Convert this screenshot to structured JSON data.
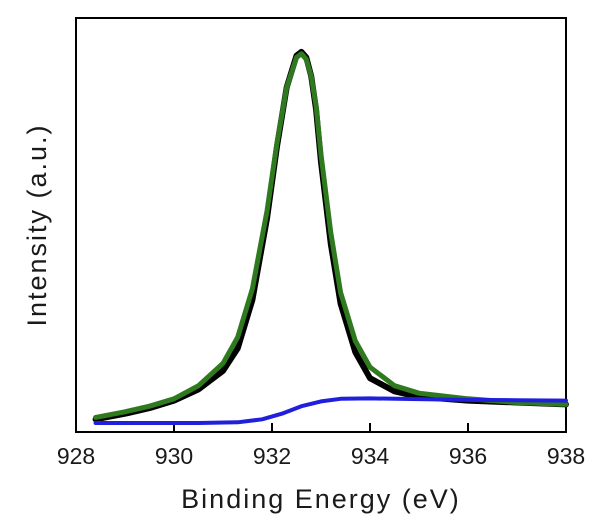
{
  "chart_data": {
    "type": "line",
    "title": "",
    "xlabel": "Binding Energy (eV)",
    "ylabel": "Intensity (a.u.)",
    "xlim": [
      928,
      938
    ],
    "ylim": [
      0,
      1
    ],
    "x_ticks": [
      "928",
      "930",
      "932",
      "934",
      "936",
      "938"
    ],
    "y_ticks_labeled": false,
    "grid": false,
    "legend": "none",
    "series": [
      {
        "color": "#000000",
        "x": [
          928.4,
          929.0,
          929.5,
          930.0,
          930.5,
          931.0,
          931.3,
          931.6,
          931.9,
          932.1,
          932.3,
          932.5,
          932.6,
          932.7,
          932.8,
          932.9,
          933.0,
          933.2,
          933.4,
          933.7,
          934.0,
          934.5,
          935.0,
          936.0,
          937.0,
          938.0
        ],
        "y": [
          0.01,
          0.025,
          0.04,
          0.06,
          0.09,
          0.14,
          0.2,
          0.33,
          0.55,
          0.74,
          0.9,
          0.985,
          0.995,
          0.98,
          0.93,
          0.84,
          0.7,
          0.48,
          0.32,
          0.19,
          0.12,
          0.085,
          0.07,
          0.06,
          0.055,
          0.05
        ]
      },
      {
        "color": "#2f7a1f",
        "x": [
          928.4,
          929.0,
          929.5,
          930.0,
          930.5,
          931.0,
          931.3,
          931.6,
          931.9,
          932.1,
          932.3,
          932.5,
          932.6,
          932.7,
          932.8,
          932.9,
          933.0,
          933.2,
          933.4,
          933.7,
          934.0,
          934.5,
          935.0,
          936.0,
          937.0,
          938.0
        ],
        "y": [
          0.015,
          0.03,
          0.045,
          0.065,
          0.1,
          0.16,
          0.23,
          0.36,
          0.57,
          0.75,
          0.9,
          0.98,
          0.99,
          0.975,
          0.93,
          0.85,
          0.72,
          0.51,
          0.35,
          0.22,
          0.15,
          0.1,
          0.08,
          0.065,
          0.055,
          0.05
        ]
      },
      {
        "color": "#1f1fdc",
        "x": [
          928.4,
          929.5,
          930.5,
          931.3,
          931.8,
          932.2,
          932.6,
          933.0,
          933.4,
          934.0,
          935.0,
          936.0,
          937.0,
          938.0
        ],
        "y": [
          0.0,
          0.0,
          0.0,
          0.002,
          0.01,
          0.025,
          0.045,
          0.058,
          0.065,
          0.066,
          0.064,
          0.062,
          0.061,
          0.06
        ]
      }
    ]
  }
}
